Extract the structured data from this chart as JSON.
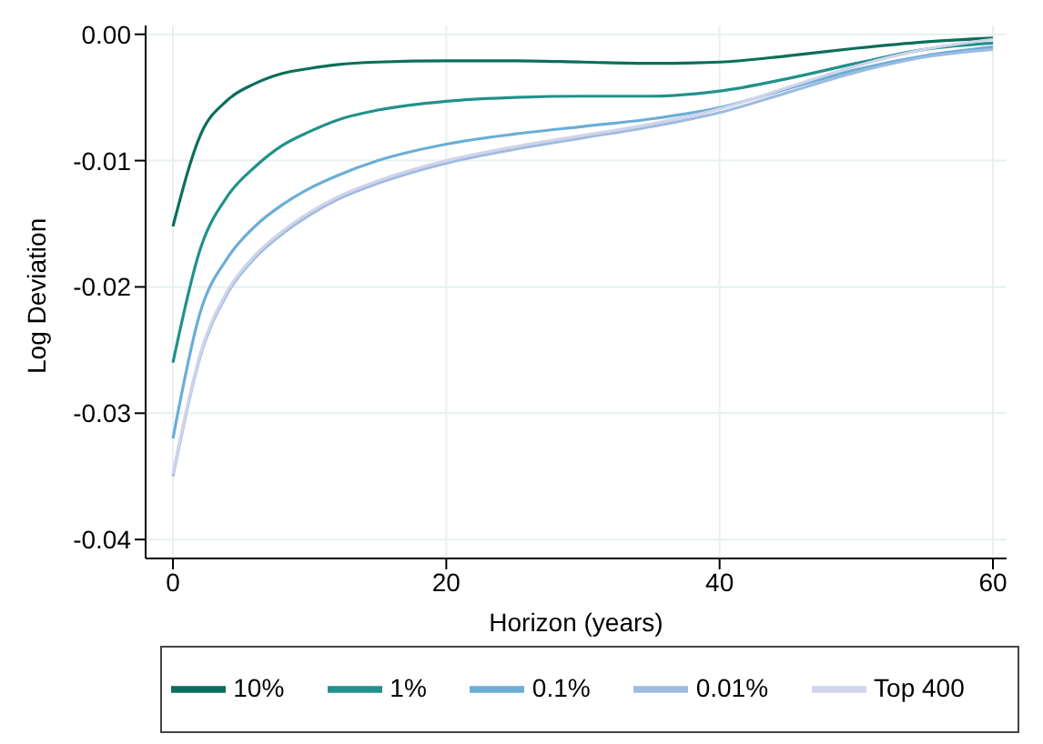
{
  "chart_data": {
    "type": "line",
    "xlabel": "Horizon (years)",
    "ylabel": "Log Deviation",
    "x": [
      0,
      2,
      4,
      6,
      8,
      10,
      12,
      15,
      20,
      25,
      30,
      35,
      40,
      45,
      50,
      55,
      60
    ],
    "series": [
      {
        "name": "10%",
        "color": "#0b6e5b",
        "values": [
          -0.0152,
          -0.008,
          -0.0052,
          -0.0039,
          -0.0031,
          -0.0027,
          -0.0024,
          -0.0022,
          -0.0021,
          -0.0021,
          -0.0022,
          -0.0023,
          -0.0022,
          -0.0017,
          -0.0011,
          -0.0006,
          -0.0003
        ]
      },
      {
        "name": "1%",
        "color": "#21918c",
        "values": [
          -0.026,
          -0.017,
          -0.0128,
          -0.0105,
          -0.0088,
          -0.0077,
          -0.0068,
          -0.006,
          -0.0053,
          -0.005,
          -0.0049,
          -0.0049,
          -0.0045,
          -0.0035,
          -0.0023,
          -0.0012,
          -0.0007
        ]
      },
      {
        "name": "0.1%",
        "color": "#6aaed6",
        "values": [
          -0.032,
          -0.022,
          -0.0177,
          -0.0152,
          -0.0135,
          -0.0122,
          -0.0112,
          -0.01,
          -0.0087,
          -0.0079,
          -0.0073,
          -0.0067,
          -0.0058,
          -0.0043,
          -0.0028,
          -0.0017,
          -0.001
        ]
      },
      {
        "name": "0.01%",
        "color": "#9ebbe0",
        "values": [
          -0.035,
          -0.0255,
          -0.0205,
          -0.0177,
          -0.0158,
          -0.0143,
          -0.0131,
          -0.0118,
          -0.0102,
          -0.0091,
          -0.0082,
          -0.0073,
          -0.0062,
          -0.0046,
          -0.003,
          -0.0018,
          -0.0012
        ]
      },
      {
        "name": "Top 400",
        "color": "#d0d4ea",
        "values": [
          -0.0348,
          -0.0253,
          -0.0203,
          -0.0175,
          -0.0156,
          -0.0141,
          -0.0129,
          -0.0116,
          -0.01,
          -0.0089,
          -0.008,
          -0.0071,
          -0.0059,
          -0.0042,
          -0.0025,
          -0.0012,
          -0.0004
        ]
      }
    ],
    "xlim": [
      -2,
      61
    ],
    "xticks": [
      0,
      20,
      40,
      60
    ],
    "ylim": [
      -0.0415,
      0.0007
    ],
    "yticks": [
      {
        "value": 0,
        "label": "0.00"
      },
      {
        "value": -0.01,
        "label": "-0.01"
      },
      {
        "value": -0.02,
        "label": "-0.02"
      },
      {
        "value": -0.03,
        "label": "-0.03"
      },
      {
        "value": -0.04,
        "label": "-0.04"
      }
    ],
    "grid": true,
    "legend": "bottom",
    "marker": "none",
    "line_style": "solid"
  }
}
